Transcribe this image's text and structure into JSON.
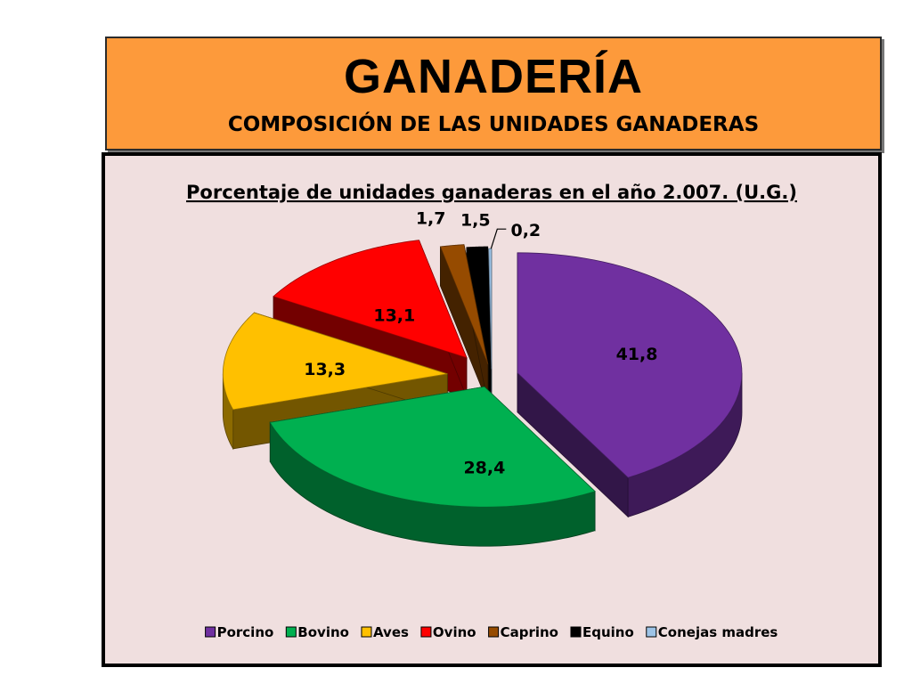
{
  "header": {
    "title": "GANADERÍA",
    "subtitle": "COMPOSICIÓN DE LAS UNIDADES GANADERAS"
  },
  "chart_data": {
    "type": "pie",
    "title": "Porcentaje de unidades ganaderas en el año 2.007. (U.G.)",
    "categories": [
      "Porcino",
      "Bovino",
      "Aves",
      "Ovino",
      "Caprino",
      "Equino",
      "Conejas madres"
    ],
    "values": [
      41.8,
      28.4,
      13.3,
      13.1,
      1.7,
      1.5,
      0.2
    ],
    "value_labels": [
      "41,8",
      "28,4",
      "13,3",
      "13,1",
      "1,7",
      "1,5",
      "0,2"
    ],
    "colors": [
      "#7030a0",
      "#00b050",
      "#ffc000",
      "#ff0000",
      "#964b00",
      "#000000",
      "#9dc3e6"
    ],
    "exploded": true,
    "style": "3d",
    "legend_position": "bottom"
  }
}
